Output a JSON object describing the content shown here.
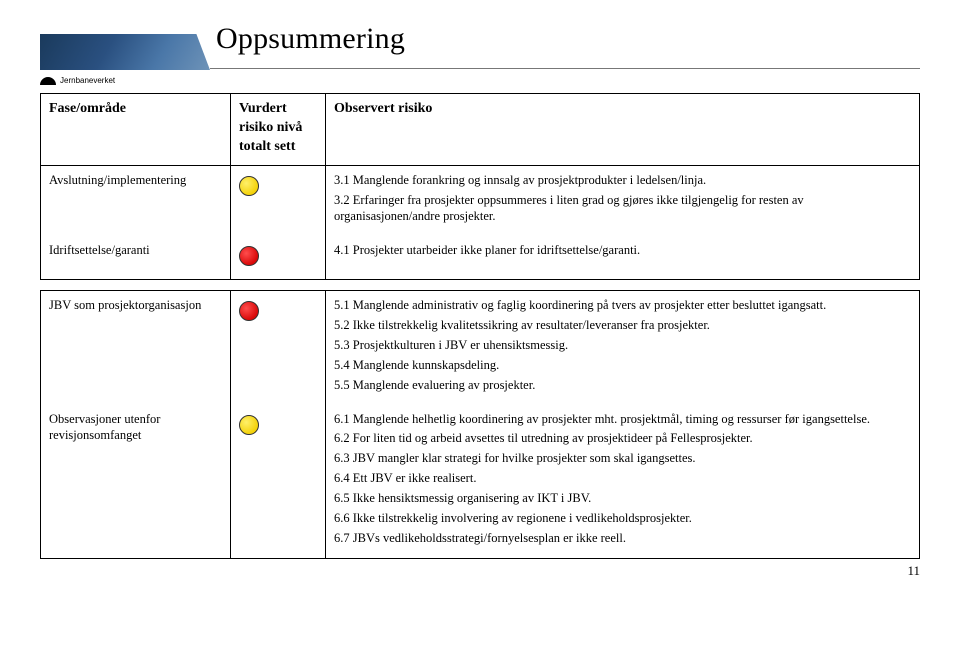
{
  "header": {
    "title": "Oppsummering",
    "org": "Jernbaneverket"
  },
  "columns": {
    "c1": "Fase/område",
    "c2": "Vurdert risiko nivå totalt sett",
    "c3": "Observert risiko"
  },
  "risk_colors": {
    "yellow": "#f6d40d",
    "red": "#e01010"
  },
  "segment1": {
    "rows": [
      {
        "phase": "Avslutning/implementering",
        "level": "yellow",
        "obs": [
          "3.1 Manglende forankring og innsalg av prosjektprodukter i ledelsen/linja.",
          "3.2 Erfaringer fra prosjekter oppsummeres i liten grad og gjøres ikke tilgjengelig for resten av organisasjonen/andre prosjekter."
        ]
      },
      {
        "phase": "Idriftsettelse/garanti",
        "level": "red",
        "obs": [
          "4.1 Prosjekter utarbeider ikke planer for idriftsettelse/garanti."
        ]
      }
    ]
  },
  "segment2": {
    "rows": [
      {
        "phase": "JBV som prosjektorganisasjon",
        "level": "red",
        "obs": [
          "5.1 Manglende administrativ og faglig koordinering på tvers av prosjekter etter besluttet igangsatt.",
          "5.2 Ikke tilstrekkelig kvalitetssikring av resultater/leveranser fra prosjekter.",
          "5.3 Prosjektkulturen i JBV er uhensiktsmessig.",
          "5.4 Manglende kunnskapsdeling.",
          "5.5 Manglende evaluering av prosjekter."
        ]
      },
      {
        "phase": "Observasjoner utenfor revisjonsomfanget",
        "level": "yellow",
        "obs": [
          "6.1 Manglende helhetlig koordinering av prosjekter mht. prosjektmål, timing og ressurser før igangsettelse.",
          "6.2 For liten tid og arbeid avsettes til utredning av prosjektideer på Fellesprosjekter.",
          "6.3 JBV mangler klar strategi for hvilke prosjekter som skal igangsettes.",
          "6.4 Ett JBV er ikke realisert.",
          "6.5 Ikke hensiktsmessig organisering av IKT i JBV.",
          "6.6 Ikke tilstrekkelig involvering av regionene i vedlikeholdsprosjekter.",
          "6.7 JBVs vedlikeholdsstrategi/fornyelsesplan er ikke reell."
        ]
      }
    ]
  },
  "page_number": "11"
}
